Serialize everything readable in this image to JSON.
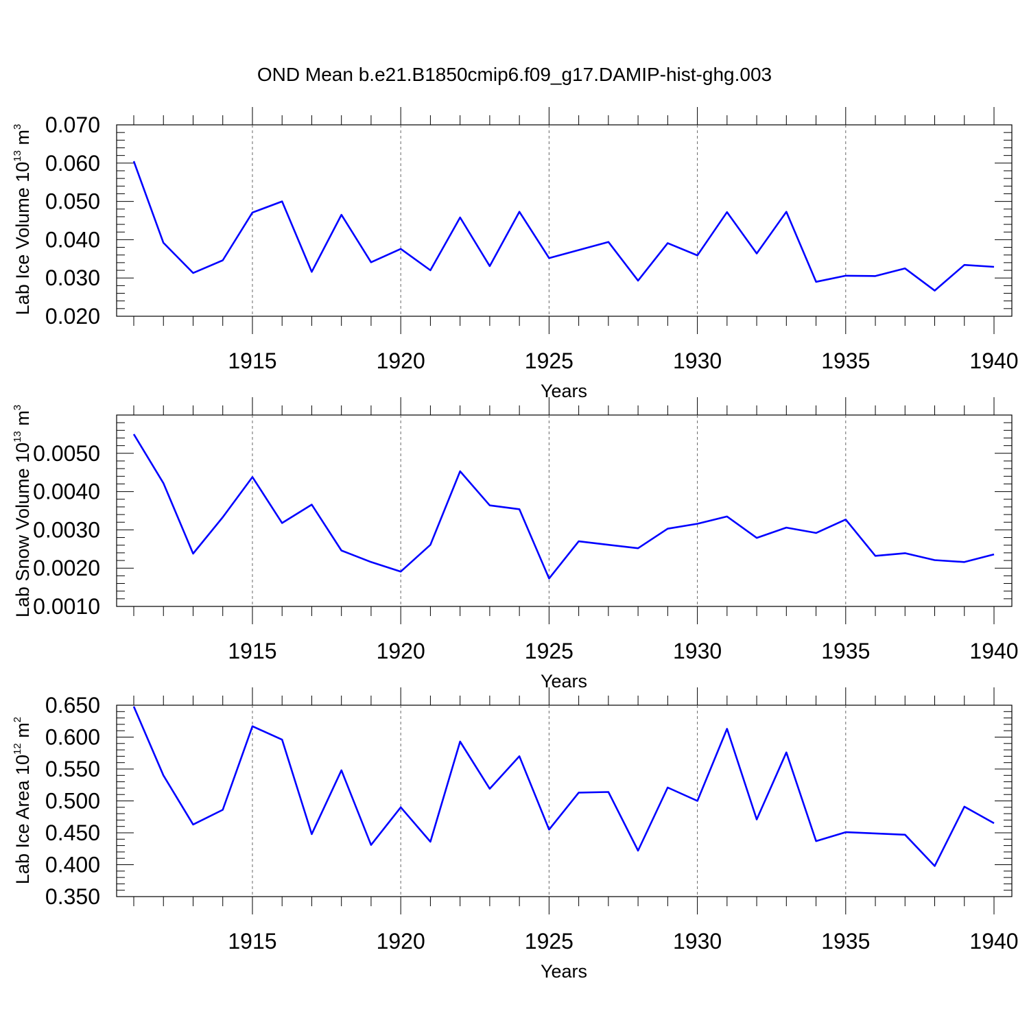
{
  "title": "OND Mean b.e21.B1850cmip6.f09_g17.DAMIP-hist-ghg.003",
  "colors": {
    "line": "#0000ff",
    "axis": "#000000",
    "grid": "#666666"
  },
  "chart_data": [
    {
      "type": "line",
      "ylabel": "Lab Ice Volume 10",
      "ylabel_exp": "13",
      "ylabel_unit": "m",
      "ylabel_unit_exp": "3",
      "xlabel": "Years",
      "xlim": [
        1911,
        1940
      ],
      "ylim": [
        0.02,
        0.07
      ],
      "yticks": [
        "0.020",
        "0.030",
        "0.040",
        "0.050",
        "0.060",
        "0.070"
      ],
      "xticks": [
        "1915",
        "1920",
        "1925",
        "1930",
        "1935",
        "1940"
      ],
      "x": [
        1911,
        1912,
        1913,
        1914,
        1915,
        1916,
        1917,
        1918,
        1919,
        1920,
        1921,
        1922,
        1923,
        1924,
        1925,
        1926,
        1927,
        1928,
        1929,
        1930,
        1931,
        1932,
        1933,
        1934,
        1935,
        1936,
        1937,
        1938,
        1939,
        1940
      ],
      "values": [
        0.0605,
        0.0392,
        0.0313,
        0.0346,
        0.0471,
        0.05,
        0.0316,
        0.0465,
        0.0341,
        0.0376,
        0.032,
        0.0458,
        0.0331,
        0.0473,
        0.0352,
        0.0373,
        0.0394,
        0.0293,
        0.0391,
        0.0359,
        0.0472,
        0.0364,
        0.0473,
        0.029,
        0.0306,
        0.0305,
        0.0325,
        0.0267,
        0.0334,
        0.0329
      ]
    },
    {
      "type": "line",
      "ylabel": "Lab Snow Volume 10",
      "ylabel_exp": "13",
      "ylabel_unit": "m",
      "ylabel_unit_exp": "3",
      "xlabel": "Years",
      "xlim": [
        1911,
        1940
      ],
      "ylim": [
        0.001,
        0.006
      ],
      "yticks": [
        "0.0010",
        "0.0020",
        "0.0030",
        "0.0040",
        "0.0050"
      ],
      "xticks": [
        "1915",
        "1920",
        "1925",
        "1930",
        "1935",
        "1940"
      ],
      "x": [
        1911,
        1912,
        1913,
        1914,
        1915,
        1916,
        1917,
        1918,
        1919,
        1920,
        1921,
        1922,
        1923,
        1924,
        1925,
        1926,
        1927,
        1928,
        1929,
        1930,
        1931,
        1932,
        1933,
        1934,
        1935,
        1936,
        1937,
        1938,
        1939,
        1940
      ],
      "values": [
        0.0055,
        0.00422,
        0.00238,
        0.00333,
        0.00438,
        0.00318,
        0.00366,
        0.00246,
        0.00216,
        0.00191,
        0.00261,
        0.00453,
        0.00364,
        0.00354,
        0.00173,
        0.0027,
        0.00261,
        0.00252,
        0.00303,
        0.00316,
        0.00335,
        0.00279,
        0.00306,
        0.00292,
        0.00327,
        0.00232,
        0.00239,
        0.00221,
        0.00216,
        0.00236
      ]
    },
    {
      "type": "line",
      "ylabel": "Lab Ice Area 10",
      "ylabel_exp": "12",
      "ylabel_unit": "m",
      "ylabel_unit_exp": "2",
      "xlabel": "Years",
      "xlim": [
        1911,
        1940
      ],
      "ylim": [
        0.35,
        0.65
      ],
      "yticks": [
        "0.350",
        "0.400",
        "0.450",
        "0.500",
        "0.550",
        "0.600",
        "0.650"
      ],
      "xticks": [
        "1915",
        "1920",
        "1925",
        "1930",
        "1935",
        "1940"
      ],
      "x": [
        1911,
        1912,
        1913,
        1914,
        1915,
        1916,
        1917,
        1918,
        1919,
        1920,
        1921,
        1922,
        1923,
        1924,
        1925,
        1926,
        1927,
        1928,
        1929,
        1930,
        1931,
        1932,
        1933,
        1934,
        1935,
        1936,
        1937,
        1938,
        1939,
        1940
      ],
      "values": [
        0.648,
        0.54,
        0.463,
        0.486,
        0.617,
        0.596,
        0.448,
        0.548,
        0.431,
        0.49,
        0.436,
        0.593,
        0.519,
        0.57,
        0.455,
        0.513,
        0.514,
        0.422,
        0.521,
        0.5,
        0.613,
        0.471,
        0.576,
        0.437,
        0.451,
        0.449,
        0.447,
        0.398,
        0.491,
        0.465
      ]
    }
  ]
}
